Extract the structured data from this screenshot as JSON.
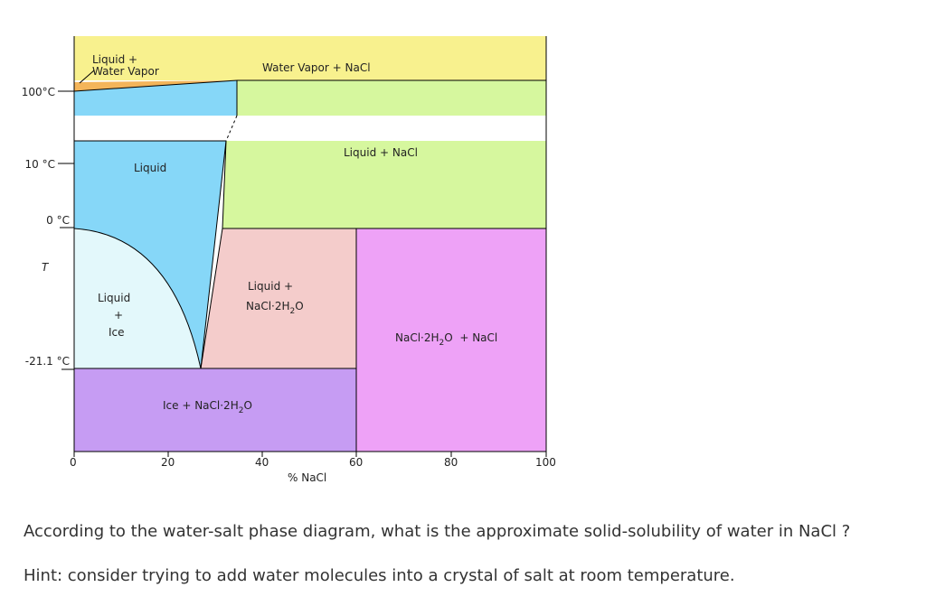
{
  "diagram": {
    "colors": {
      "vapor_nacl": "#f8f18e",
      "liquid_vapor": "#f4b55a",
      "liquid": "#86d7f8",
      "liquid_nacl": "#d6f79e",
      "liquid_ice": "#e3f8fb",
      "liquid_hydrate": "#f4cccb",
      "ice_hydrate": "#c69cf3",
      "hydrate_nacl": "#eea2f7"
    },
    "y_tick_labels": [
      "100°C",
      "10 °C",
      "0 °C",
      "-21.1 °C"
    ],
    "y_axis_label": "T",
    "x_tick_labels": [
      "0",
      "20",
      "40",
      "60",
      "80",
      "100"
    ],
    "x_axis_label": "% NaCl",
    "regions": {
      "liquid_vapor_1": "Liquid +",
      "liquid_vapor_2": "Water Vapor",
      "vapor_nacl": "Water Vapor + NaCl",
      "liquid": "Liquid",
      "liquid_nacl": "Liquid + NaCl",
      "liquid_ice_1": "Liquid",
      "liquid_ice_2": "+",
      "liquid_ice_3": "Ice",
      "liquid_hydrate_1": "Liquid +",
      "liquid_hydrate_2a": "NaCl·2H",
      "liquid_hydrate_2b": "2",
      "liquid_hydrate_2c": "O",
      "hydrate_nacl_a": "NaCl·2H",
      "hydrate_nacl_b": "2",
      "hydrate_nacl_c": "O  + NaCl",
      "ice_hydrate_a": "Ice + NaCl·2H",
      "ice_hydrate_b": "2",
      "ice_hydrate_c": "O"
    }
  },
  "question": "According to the water-salt phase diagram, what is the approximate solid-solubility of water in NaCl ?",
  "hint": "Hint: consider trying to add water molecules into a crystal of salt at room temperature."
}
